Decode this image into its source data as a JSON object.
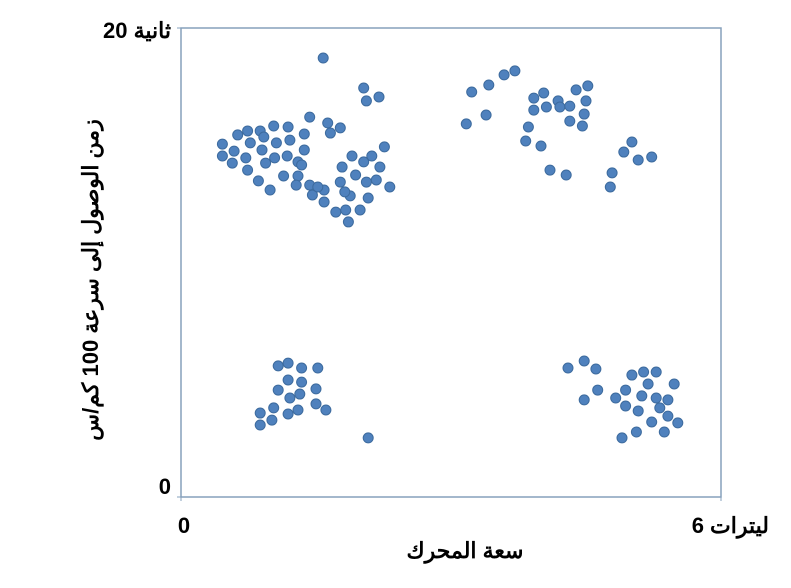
{
  "chart_data": {
    "type": "scatter",
    "x_label": "سعة المحرك",
    "y_label": "زمن الوصول إلى سرعة 100 كم/س",
    "xlim": [
      0,
      6
    ],
    "ylim": [
      0,
      20
    ],
    "xticks": [
      0,
      {
        "value": 6,
        "label": "6 ليترات"
      }
    ],
    "yticks": [
      0,
      {
        "value": 20,
        "label": "20 ثانية"
      }
    ],
    "color": "#4f81bd",
    "x": [
      0.46,
      0.46,
      0.57,
      0.59,
      0.63,
      0.74,
      0.77,
      0.72,
      0.74,
      0.88,
      0.92,
      0.9,
      0.94,
      0.86,
      1.03,
      1.06,
      1.04,
      0.99,
      1.14,
      1.19,
      1.21,
      1.18,
      1.3,
      1.3,
      1.28,
      1.37,
      1.37,
      1.43,
      1.43,
      1.46,
      1.59,
      1.59,
      1.63,
      1.66,
      1.77,
      1.79,
      1.77,
      1.72,
      1.83,
      1.86,
      1.88,
      1.9,
      1.94,
      1.99,
      2.03,
      2.06,
      2.08,
      2.12,
      2.21,
      2.17,
      2.26,
      2.32,
      1.58,
      2.03,
      2.06,
      2.2,
      1.82,
      1.52,
      1.34,
      3.17,
      3.23,
      3.39,
      3.42,
      3.59,
      3.71,
      3.86,
      3.83,
      3.92,
      3.92,
      4.0,
      4.03,
      4.06,
      4.1,
      4.19,
      4.21,
      4.28,
      4.32,
      4.32,
      4.39,
      4.46,
      4.48,
      4.5,
      4.52,
      4.77,
      4.79,
      4.92,
      5.01,
      5.08,
      5.23,
      0.88,
      0.88,
      1.01,
      1.03,
      1.08,
      1.08,
      1.19,
      1.19,
      1.21,
      1.19,
      1.3,
      1.32,
      1.34,
      1.34,
      1.5,
      1.5,
      1.52,
      1.61,
      2.08,
      4.3,
      4.48,
      4.61,
      4.48,
      4.63,
      4.83,
      4.94,
      4.94,
      4.9,
      5.01,
      5.06,
      5.08,
      5.12,
      5.14,
      5.19,
      5.23,
      5.28,
      5.28,
      5.32,
      5.37,
      5.41,
      5.41,
      5.48,
      5.52
    ],
    "values": [
      15.05,
      14.54,
      14.24,
      14.75,
      15.44,
      15.61,
      15.1,
      14.46,
      13.94,
      15.61,
      15.35,
      14.8,
      14.24,
      13.48,
      15.82,
      15.1,
      14.46,
      13.09,
      13.69,
      15.78,
      15.22,
      14.54,
      14.29,
      13.69,
      13.3,
      15.48,
      14.8,
      16.2,
      13.3,
      12.88,
      13.09,
      12.58,
      15.95,
      15.52,
      15.74,
      14.07,
      13.43,
      12.15,
      12.24,
      11.73,
      12.84,
      14.54,
      13.73,
      12.24,
      14.29,
      13.43,
      12.75,
      14.54,
      14.07,
      13.52,
      14.93,
      13.22,
      18.72,
      17.44,
      16.89,
      17.06,
      13.01,
      13.22,
      14.16,
      15.91,
      17.27,
      16.29,
      17.57,
      18.0,
      18.17,
      15.78,
      15.18,
      17.01,
      16.5,
      14.97,
      17.23,
      16.63,
      13.94,
      16.89,
      16.63,
      13.73,
      16.03,
      16.67,
      17.36,
      15.82,
      16.33,
      16.89,
      17.53,
      13.22,
      13.82,
      14.71,
      15.14,
      14.37,
      14.5,
      3.58,
      3.07,
      3.28,
      3.8,
      5.59,
      4.56,
      5.71,
      4.99,
      4.22,
      3.54,
      3.71,
      4.39,
      5.5,
      4.9,
      4.61,
      3.97,
      5.5,
      3.71,
      2.52,
      5.5,
      5.8,
      5.46,
      4.14,
      4.56,
      4.22,
      4.56,
      3.88,
      2.52,
      5.2,
      2.77,
      3.67,
      4.31,
      5.33,
      4.82,
      3.2,
      5.33,
      4.22,
      3.8,
      2.77,
      4.14,
      3.45,
      4.82,
      3.16
    ]
  }
}
